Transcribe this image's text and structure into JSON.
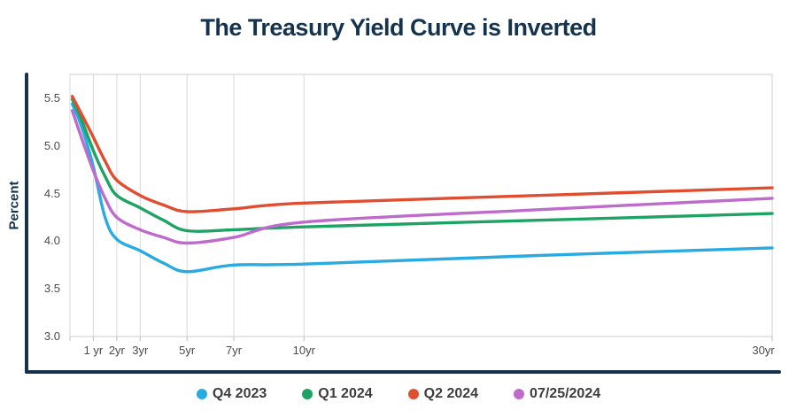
{
  "title": "The Treasury Yield Curve is Inverted",
  "colors": {
    "title_text": "#14334E",
    "axis": "#16324E",
    "tick_text": "#4A4A4A",
    "legend_text": "#3D3D3D",
    "grid": "#D8D8D8",
    "plot_border": "#CFCFCF",
    "tick_mark": "#BDBDBD"
  },
  "chart_data": {
    "type": "line",
    "title": "The Treasury Yield Curve is Inverted",
    "ylabel": "Percent",
    "x_unit": "years to maturity",
    "xlim": [
      0,
      30
    ],
    "ylim": [
      3.0,
      5.75
    ],
    "grid": "vertical-only",
    "legend_position": "bottom",
    "y_ticks": [
      5.5,
      5.0,
      4.5,
      4.0,
      3.5,
      3.0
    ],
    "y_tick_labels": [
      "5.5",
      "5.0",
      "4.5",
      "4.0",
      "3.5",
      "3.0"
    ],
    "x_ticks": [
      1,
      2,
      3,
      5,
      7,
      10,
      30
    ],
    "x_tick_labels": [
      "1 yr",
      "2yr",
      "3yr",
      "5yr",
      "7yr",
      "10yr",
      "30yr"
    ],
    "grid_years": [
      0,
      1,
      2,
      3,
      5,
      7,
      10
    ],
    "x": [
      0.1,
      0.5,
      1,
      1.5,
      2,
      3,
      4,
      5,
      7,
      10,
      20,
      30
    ],
    "series": [
      {
        "name": "Q4 2023",
        "color": "#29ABE2",
        "values": [
          5.44,
          5.2,
          4.78,
          4.25,
          4.02,
          3.9,
          3.77,
          3.68,
          3.75,
          3.76,
          3.85,
          3.93
        ]
      },
      {
        "name": "Q1 2024",
        "color": "#1FA364",
        "values": [
          5.49,
          5.27,
          4.95,
          4.68,
          4.48,
          4.35,
          4.22,
          4.11,
          4.12,
          4.15,
          4.22,
          4.29
        ]
      },
      {
        "name": "Q2 2024",
        "color": "#E04E2F",
        "values": [
          5.52,
          5.33,
          5.09,
          4.84,
          4.64,
          4.48,
          4.38,
          4.31,
          4.34,
          4.4,
          4.48,
          4.56
        ]
      },
      {
        "name": "07/25/2024",
        "color": "#BE6BCB",
        "values": [
          5.37,
          5.08,
          4.74,
          4.45,
          4.25,
          4.12,
          4.04,
          3.98,
          4.04,
          4.2,
          4.33,
          4.45
        ]
      }
    ]
  }
}
